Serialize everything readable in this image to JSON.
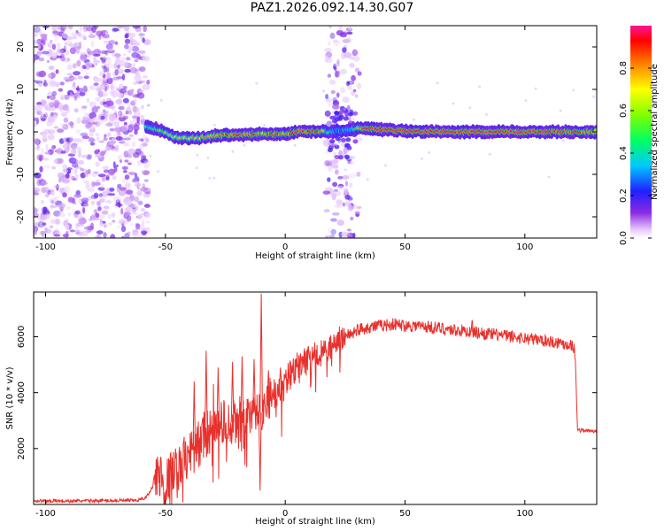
{
  "title": "PAZ1.2026.092.14.30.G07",
  "chart_data": [
    {
      "type": "heatmap",
      "name": "spectrogram",
      "xlabel": "Height of straight line (km)",
      "ylabel": "Frequency (Hz)",
      "xlim": [
        -105,
        130
      ],
      "ylim": [
        -25,
        25
      ],
      "xticks": [
        -100,
        -50,
        0,
        50,
        100
      ],
      "yticks": [
        -20,
        -10,
        0,
        10,
        20
      ],
      "noise_region_x": [
        -105,
        -57
      ],
      "noise_region2_x": [
        17,
        31
      ],
      "ridge": {
        "x": [
          -58,
          -52,
          -46,
          -40,
          -35,
          -30,
          -25,
          -20,
          -15,
          -10,
          -5,
          0,
          5,
          10,
          15,
          18,
          22,
          26,
          30,
          33,
          40,
          50,
          60,
          70,
          80,
          90,
          100,
          110,
          120,
          130
        ],
        "frequency": [
          1.3,
          0.4,
          -1.2,
          -1.5,
          -1.4,
          -1.0,
          -0.8,
          -0.7,
          -0.6,
          -0.5,
          -0.5,
          -0.5,
          0.0,
          0.1,
          0.1,
          0.0,
          0.2,
          0.4,
          0.8,
          0.9,
          0.5,
          0.2,
          0.1,
          0.0,
          0.0,
          0.0,
          0.0,
          0.0,
          0.0,
          0.0
        ],
        "amplitude": [
          0.45,
          0.55,
          0.65,
          0.7,
          0.72,
          0.78,
          0.85,
          0.92,
          0.85,
          0.8,
          0.9,
          0.8,
          0.95,
          0.9,
          0.85,
          0.45,
          0.25,
          0.35,
          0.55,
          0.95,
          0.98,
          0.98,
          0.97,
          0.95,
          0.96,
          0.97,
          0.96,
          0.95,
          0.9,
          0.85
        ]
      },
      "colorbar": {
        "label": "Normalized spectral amplitude",
        "range": [
          0,
          1
        ],
        "ticks": [
          0.0,
          0.2,
          0.4,
          0.6,
          0.8
        ]
      }
    },
    {
      "type": "line",
      "name": "snr",
      "xlabel": "Height of straight line (km)",
      "ylabel": "SNR (10 * v/v)",
      "xlim": [
        -105,
        130
      ],
      "ylim": [
        0,
        7600
      ],
      "xticks": [
        -100,
        -50,
        0,
        50,
        100
      ],
      "yticks": [
        2000,
        4000,
        6000
      ],
      "color": "#e8312d",
      "x": [
        -105,
        -90,
        -75,
        -62,
        -58,
        -55,
        -53,
        -50,
        -45,
        -40,
        -35,
        -30,
        -25,
        -20,
        -15,
        -10,
        -5,
        0,
        5,
        10,
        15,
        20,
        25,
        30,
        35,
        40,
        45,
        50,
        55,
        60,
        70,
        80,
        90,
        100,
        110,
        120,
        121,
        122,
        125,
        130
      ],
      "y": [
        130,
        120,
        140,
        140,
        250,
        700,
        1100,
        700,
        1200,
        1700,
        2300,
        2700,
        3000,
        2900,
        3200,
        3300,
        3900,
        4300,
        4900,
        5200,
        5400,
        5700,
        6000,
        6250,
        6350,
        6400,
        6450,
        6400,
        6400,
        6350,
        6250,
        6150,
        6050,
        5950,
        5850,
        5700,
        5400,
        2650,
        2650,
        2600
      ],
      "spikes": [
        {
          "x": -38,
          "y": 4400
        },
        {
          "x": -33,
          "y": 5500
        },
        {
          "x": -28,
          "y": 4900
        },
        {
          "x": -22,
          "y": 5100
        },
        {
          "x": -18,
          "y": 5300
        },
        {
          "x": -13,
          "y": 5200
        },
        {
          "x": -10,
          "y": 7550
        },
        {
          "x": -10.5,
          "y": 500
        },
        {
          "x": -7,
          "y": 4800
        },
        {
          "x": -2,
          "y": 4900
        },
        {
          "x": 2,
          "y": 5150
        },
        {
          "x": 7,
          "y": 5300
        },
        {
          "x": 12,
          "y": 5500
        },
        {
          "x": 78,
          "y": 6600
        }
      ]
    }
  ]
}
